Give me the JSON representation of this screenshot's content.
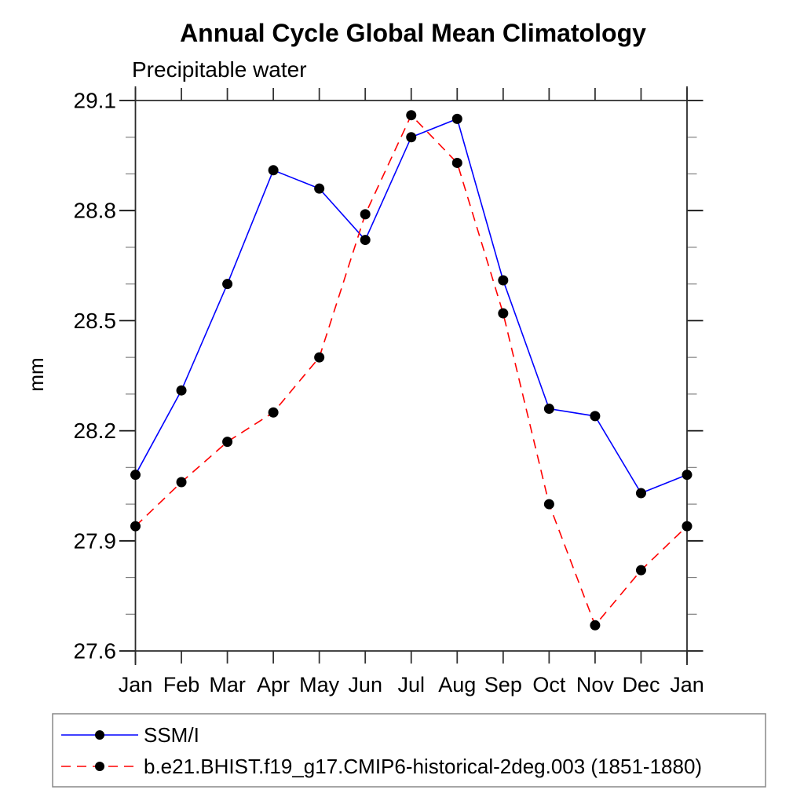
{
  "page": {
    "background": "#ffffff"
  },
  "chart_data": {
    "type": "line",
    "title": "Annual Cycle Global Mean Climatology",
    "subtitle": "Precipitable water",
    "ylabel": "mm",
    "categories": [
      "Jan",
      "Feb",
      "Mar",
      "Apr",
      "May",
      "Jun",
      "Jul",
      "Aug",
      "Sep",
      "Oct",
      "Nov",
      "Dec",
      "Jan"
    ],
    "series": [
      {
        "name": "SSM/I",
        "color": "#0000ff",
        "line_style": "solid",
        "marker": "filled-black-circle",
        "values": [
          28.08,
          28.31,
          28.6,
          28.91,
          28.86,
          28.72,
          29.0,
          29.05,
          28.61,
          28.26,
          28.24,
          28.03,
          28.08
        ]
      },
      {
        "name": "b.e21.BHIST.f19_g17.CMIP6-historical-2deg.003 (1851-1880)",
        "color": "#ff0000",
        "line_style": "dashed",
        "marker": "filled-black-circle",
        "values": [
          27.94,
          28.06,
          28.17,
          28.25,
          28.4,
          28.79,
          29.06,
          28.93,
          28.52,
          28.0,
          27.67,
          27.82,
          27.94
        ]
      }
    ],
    "ylim": [
      27.6,
      29.1
    ],
    "ytick_major": [
      27.6,
      27.9,
      28.2,
      28.5,
      28.8,
      29.1
    ],
    "ytick_labels": [
      "27.6",
      "27.9",
      "28.2",
      "28.5",
      "28.8",
      "29.1"
    ],
    "ytick_minor_step": 0.1,
    "grid": false,
    "legend_position": "bottom-left-box",
    "marker_color": "#000000",
    "axis_color": "#2b2b2b"
  }
}
